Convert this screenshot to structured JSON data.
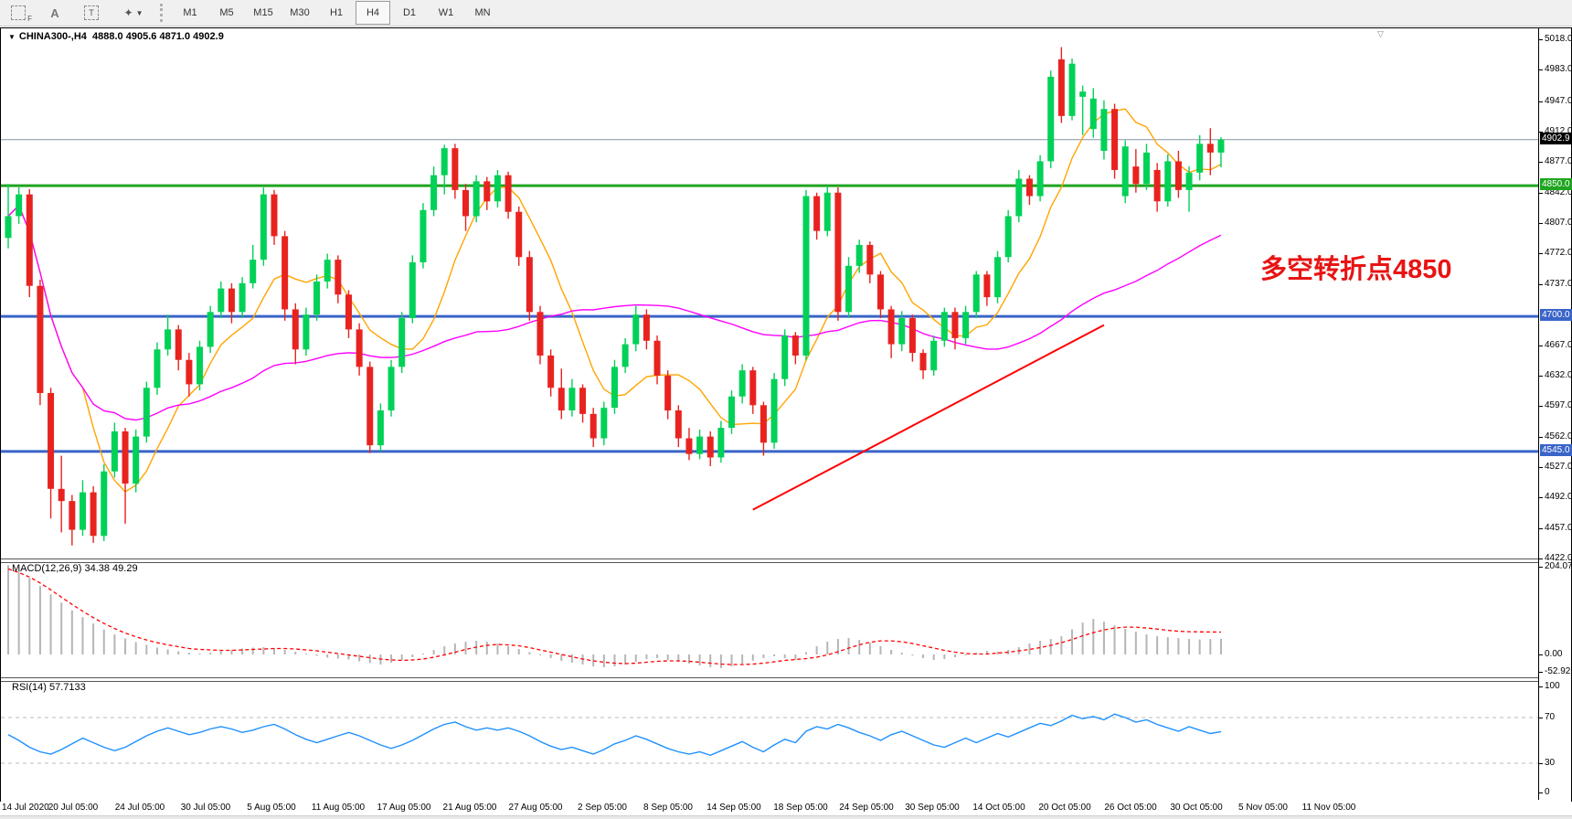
{
  "toolbar": {
    "tools": {
      "selection_label": "F",
      "text_label": "A",
      "text_box_label": "T",
      "style_icon": "✦",
      "dropdown_icon": "▼"
    },
    "timeframes": [
      "M1",
      "M5",
      "M15",
      "M30",
      "H1",
      "H4",
      "D1",
      "W1",
      "MN"
    ],
    "active_timeframe": "H4"
  },
  "title": {
    "dropdown_icon": "▼",
    "symbol_period": "CHINA300-,H4",
    "open": "4888.0",
    "high": "4905.6",
    "low": "4871.0",
    "close": "4902.9"
  },
  "annotation": {
    "text": "多空转折点4850",
    "color": "#E81414"
  },
  "indicators": {
    "macd_label": "MACD(12,26,9) 34.38 49.29",
    "rsi_label": "RSI(14) 57.7133"
  },
  "tags": {
    "bid": {
      "label": "4902.9",
      "bg": "#000000"
    },
    "level_4850": {
      "label": "4850.0",
      "bg": "#1FA51F"
    },
    "level_4700": {
      "label": "4700.0",
      "bg": "#3A64C8"
    },
    "level_4545": {
      "label": "4545.0",
      "bg": "#3A64C8"
    }
  },
  "chart_data": {
    "type": "candlestick",
    "symbol": "CHINA300-",
    "period": "H4",
    "y_range": [
      4422,
      5018
    ],
    "y_ticks": [
      5018.0,
      4983.0,
      4947.0,
      4912.0,
      4877.0,
      4842.0,
      4807.0,
      4772.0,
      4737.0,
      4667.0,
      4632.0,
      4597.0,
      4562.0,
      4527.0,
      4492.0,
      4457.0,
      4422.0
    ],
    "up_color": "#00D157",
    "down_color": "#E8231F",
    "candles": [
      [
        4790,
        4852,
        4778,
        4815
      ],
      [
        4815,
        4848,
        4806,
        4840
      ],
      [
        4840,
        4846,
        4722,
        4735
      ],
      [
        4735,
        4742,
        4598,
        4612
      ],
      [
        4612,
        4618,
        4468,
        4502
      ],
      [
        4502,
        4540,
        4452,
        4488
      ],
      [
        4488,
        4495,
        4437,
        4455
      ],
      [
        4455,
        4512,
        4448,
        4498
      ],
      [
        4498,
        4505,
        4440,
        4448
      ],
      [
        4448,
        4530,
        4442,
        4522
      ],
      [
        4522,
        4578,
        4515,
        4568
      ],
      [
        4568,
        4572,
        4462,
        4508
      ],
      [
        4508,
        4570,
        4498,
        4562
      ],
      [
        4562,
        4625,
        4555,
        4618
      ],
      [
        4618,
        4670,
        4610,
        4662
      ],
      [
        4662,
        4702,
        4655,
        4685
      ],
      [
        4685,
        4690,
        4638,
        4650
      ],
      [
        4650,
        4658,
        4608,
        4622
      ],
      [
        4622,
        4672,
        4615,
        4665
      ],
      [
        4665,
        4712,
        4658,
        4705
      ],
      [
        4705,
        4740,
        4698,
        4732
      ],
      [
        4732,
        4738,
        4692,
        4705
      ],
      [
        4705,
        4745,
        4698,
        4738
      ],
      [
        4738,
        4782,
        4732,
        4765
      ],
      [
        4765,
        4848,
        4758,
        4840
      ],
      [
        4840,
        4845,
        4782,
        4792
      ],
      [
        4792,
        4798,
        4695,
        4708
      ],
      [
        4708,
        4715,
        4645,
        4662
      ],
      [
        4662,
        4710,
        4655,
        4702
      ],
      [
        4702,
        4748,
        4695,
        4740
      ],
      [
        4740,
        4772,
        4732,
        4765
      ],
      [
        4765,
        4770,
        4715,
        4725
      ],
      [
        4725,
        4730,
        4675,
        4685
      ],
      [
        4685,
        4692,
        4632,
        4642
      ],
      [
        4642,
        4648,
        4543,
        4552
      ],
      [
        4552,
        4600,
        4545,
        4592
      ],
      [
        4592,
        4650,
        4585,
        4642
      ],
      [
        4642,
        4705,
        4635,
        4698
      ],
      [
        4698,
        4770,
        4692,
        4762
      ],
      [
        4762,
        4830,
        4755,
        4822
      ],
      [
        4822,
        4872,
        4815,
        4862
      ],
      [
        4862,
        4897,
        4840,
        4893
      ],
      [
        4893,
        4898,
        4835,
        4845
      ],
      [
        4845,
        4852,
        4798,
        4815
      ],
      [
        4815,
        4862,
        4808,
        4855
      ],
      [
        4855,
        4860,
        4822,
        4832
      ],
      [
        4832,
        4868,
        4825,
        4862
      ],
      [
        4862,
        4866,
        4812,
        4820
      ],
      [
        4820,
        4826,
        4758,
        4768
      ],
      [
        4768,
        4775,
        4695,
        4705
      ],
      [
        4705,
        4712,
        4645,
        4655
      ],
      [
        4655,
        4662,
        4608,
        4618
      ],
      [
        4618,
        4640,
        4582,
        4592
      ],
      [
        4592,
        4628,
        4585,
        4618
      ],
      [
        4618,
        4622,
        4578,
        4588
      ],
      [
        4588,
        4595,
        4550,
        4560
      ],
      [
        4560,
        4602,
        4552,
        4595
      ],
      [
        4595,
        4650,
        4588,
        4642
      ],
      [
        4642,
        4675,
        4635,
        4668
      ],
      [
        4668,
        4712,
        4660,
        4702
      ],
      [
        4702,
        4708,
        4662,
        4672
      ],
      [
        4672,
        4678,
        4622,
        4632
      ],
      [
        4632,
        4638,
        4582,
        4592
      ],
      [
        4592,
        4598,
        4550,
        4560
      ],
      [
        4560,
        4572,
        4535,
        4542
      ],
      [
        4542,
        4570,
        4536,
        4562
      ],
      [
        4562,
        4568,
        4528,
        4538
      ],
      [
        4538,
        4580,
        4532,
        4572
      ],
      [
        4572,
        4615,
        4565,
        4608
      ],
      [
        4608,
        4645,
        4600,
        4638
      ],
      [
        4638,
        4642,
        4588,
        4598
      ],
      [
        4598,
        4602,
        4540,
        4555
      ],
      [
        4555,
        4635,
        4548,
        4628
      ],
      [
        4628,
        4685,
        4620,
        4678
      ],
      [
        4678,
        4682,
        4645,
        4655
      ],
      [
        4655,
        4845,
        4650,
        4838
      ],
      [
        4838,
        4842,
        4788,
        4798
      ],
      [
        4798,
        4850,
        4792,
        4842
      ],
      [
        4842,
        4848,
        4695,
        4705
      ],
      [
        4705,
        4768,
        4698,
        4758
      ],
      [
        4758,
        4788,
        4750,
        4782
      ],
      [
        4782,
        4786,
        4738,
        4748
      ],
      [
        4748,
        4752,
        4698,
        4708
      ],
      [
        4708,
        4712,
        4652,
        4668
      ],
      [
        4668,
        4706,
        4660,
        4698
      ],
      [
        4698,
        4702,
        4648,
        4658
      ],
      [
        4658,
        4662,
        4628,
        4638
      ],
      [
        4638,
        4678,
        4632,
        4672
      ],
      [
        4672,
        4710,
        4665,
        4705
      ],
      [
        4705,
        4710,
        4662,
        4675
      ],
      [
        4675,
        4712,
        4668,
        4705
      ],
      [
        4705,
        4752,
        4698,
        4748
      ],
      [
        4748,
        4752,
        4712,
        4722
      ],
      [
        4722,
        4775,
        4715,
        4768
      ],
      [
        4768,
        4822,
        4762,
        4815
      ],
      [
        4815,
        4868,
        4808,
        4858
      ],
      [
        4858,
        4862,
        4828,
        4838
      ],
      [
        4838,
        4885,
        4832,
        4878
      ],
      [
        4878,
        4982,
        4870,
        4975
      ],
      [
        4995,
        5009,
        4922,
        4930
      ],
      [
        4930,
        4996,
        4925,
        4990
      ],
      [
        4952,
        4965,
        4908,
        4958
      ],
      [
        4915,
        4962,
        4905,
        4950
      ],
      [
        4890,
        4948,
        4880,
        4938
      ],
      [
        4938,
        4944,
        4858,
        4868
      ],
      [
        4838,
        4902,
        4830,
        4895
      ],
      [
        4872,
        4892,
        4842,
        4852
      ],
      [
        4852,
        4898,
        4845,
        4888
      ],
      [
        4868,
        4876,
        4820,
        4832
      ],
      [
        4832,
        4886,
        4826,
        4878
      ],
      [
        4878,
        4890,
        4836,
        4845
      ],
      [
        4845,
        4872,
        4820,
        4865
      ],
      [
        4865,
        4908,
        4856,
        4898
      ],
      [
        4898,
        4916,
        4862,
        4888
      ],
      [
        4888,
        4905.6,
        4871,
        4902.9
      ]
    ],
    "ma_fast": {
      "period": 8,
      "color": "#FFA500"
    },
    "ma_slow": {
      "period": 45,
      "color": "#FF00FF"
    },
    "hlines": [
      {
        "price": 4850,
        "color": "#1FA51F",
        "width": 3,
        "label": "4850.0"
      },
      {
        "price": 4700,
        "color": "#3A64C8",
        "width": 3,
        "label": "4700.0"
      },
      {
        "price": 4545,
        "color": "#3A64C8",
        "width": 3,
        "label": "4545.0"
      }
    ],
    "bid_line": {
      "price": 4902.9,
      "color": "#8296A8",
      "label": "4902.9"
    },
    "trendline": {
      "color": "#FF0000",
      "from": {
        "bar": 70,
        "price": 4478
      },
      "to": {
        "bar": 103,
        "price": 4690
      }
    },
    "macd": {
      "params": "12,26,9",
      "current_macd": 34.38,
      "current_signal": 49.29,
      "hist_color": "#B5B5B5",
      "signal_color": "#FF0000",
      "ticks": [
        204.07,
        0.0,
        -52.92
      ],
      "hist": [
        196,
        182,
        168,
        150,
        132,
        114,
        97,
        82,
        68,
        55,
        44,
        35,
        27,
        21,
        15,
        11,
        7,
        4,
        2,
        4,
        7,
        10,
        13,
        15,
        16,
        14,
        10,
        6,
        2,
        -3,
        -7,
        -9,
        -11,
        -15,
        -19,
        -22,
        -18,
        -12,
        -6,
        2,
        10,
        18,
        24,
        28,
        30,
        28,
        24,
        18,
        12,
        5,
        -2,
        -8,
        -14,
        -18,
        -22,
        -26,
        -28,
        -26,
        -22,
        -16,
        -10,
        -8,
        -12,
        -16,
        -20,
        -24,
        -28,
        -30,
        -26,
        -20,
        -14,
        -8,
        -4,
        -8,
        -12,
        5,
        18,
        28,
        34,
        36,
        32,
        26,
        18,
        10,
        4,
        -2,
        -8,
        -12,
        -10,
        -6,
        -2,
        4,
        8,
        6,
        10,
        16,
        24,
        30,
        34,
        40,
        55,
        70,
        78,
        72,
        64,
        56,
        50,
        44,
        40,
        38,
        36,
        34,
        33,
        34,
        34.38
      ],
      "signal": [
        188,
        180,
        170,
        157,
        142,
        126,
        110,
        95,
        81,
        68,
        57,
        47,
        39,
        32,
        26,
        21,
        17,
        13,
        11,
        10,
        9,
        9,
        10,
        11,
        12,
        13,
        13,
        12,
        10,
        8,
        5,
        2,
        -1,
        -4,
        -7,
        -10,
        -12,
        -13,
        -12,
        -10,
        -6,
        -1,
        5,
        11,
        16,
        20,
        22,
        21,
        19,
        15,
        10,
        5,
        0,
        -5,
        -10,
        -14,
        -17,
        -19,
        -20,
        -19,
        -17,
        -15,
        -14,
        -14,
        -15,
        -17,
        -19,
        -21,
        -22,
        -22,
        -21,
        -19,
        -16,
        -13,
        -11,
        -9,
        -6,
        -1,
        6,
        14,
        21,
        27,
        30,
        30,
        28,
        24,
        19,
        14,
        9,
        5,
        2,
        1,
        1,
        3,
        5,
        8,
        11,
        15,
        20,
        26,
        33,
        41,
        48,
        54,
        58,
        60,
        60,
        58,
        56,
        53,
        51,
        50,
        49.5,
        49.3,
        49.29
      ]
    },
    "rsi": {
      "period": 14,
      "current": 57.7133,
      "color": "#1E90FF",
      "levels": [
        70,
        30
      ],
      "ticks": [
        100,
        70,
        30,
        0
      ],
      "range": [
        0,
        100
      ],
      "values": [
        55,
        50,
        44,
        40,
        38,
        42,
        47,
        52,
        48,
        44,
        41,
        44,
        49,
        54,
        58,
        61,
        58,
        55,
        57,
        60,
        62,
        60,
        57,
        59,
        62,
        64,
        60,
        55,
        51,
        48,
        51,
        54,
        57,
        54,
        50,
        46,
        43,
        46,
        50,
        55,
        60,
        64,
        66,
        62,
        59,
        61,
        59,
        61,
        58,
        54,
        49,
        45,
        42,
        44,
        41,
        38,
        42,
        47,
        50,
        54,
        51,
        47,
        43,
        40,
        38,
        40,
        37,
        41,
        45,
        49,
        44,
        40,
        46,
        51,
        48,
        58,
        62,
        60,
        64,
        61,
        57,
        54,
        50,
        55,
        58,
        54,
        50,
        46,
        44,
        48,
        52,
        48,
        52,
        56,
        53,
        57,
        61,
        65,
        63,
        67,
        72,
        69,
        71,
        68,
        73,
        70,
        66,
        68,
        64,
        61,
        58,
        62,
        59,
        56,
        57.7
      ]
    },
    "x_labels": [
      "14 Jul 2020",
      "20 Jul 05:00",
      "24 Jul 05:00",
      "30 Jul 05:00",
      "5 Aug 05:00",
      "11 Aug 05:00",
      "17 Aug 05:00",
      "21 Aug 05:00",
      "27 Aug 05:00",
      "2 Sep 05:00",
      "8 Sep 05:00",
      "14 Sep 05:00",
      "18 Sep 05:00",
      "24 Sep 05:00",
      "30 Sep 05:00",
      "14 Oct 05:00",
      "20 Oct 05:00",
      "26 Oct 05:00",
      "30 Oct 05:00",
      "5 Nov 05:00",
      "11 Nov 05:00"
    ]
  }
}
